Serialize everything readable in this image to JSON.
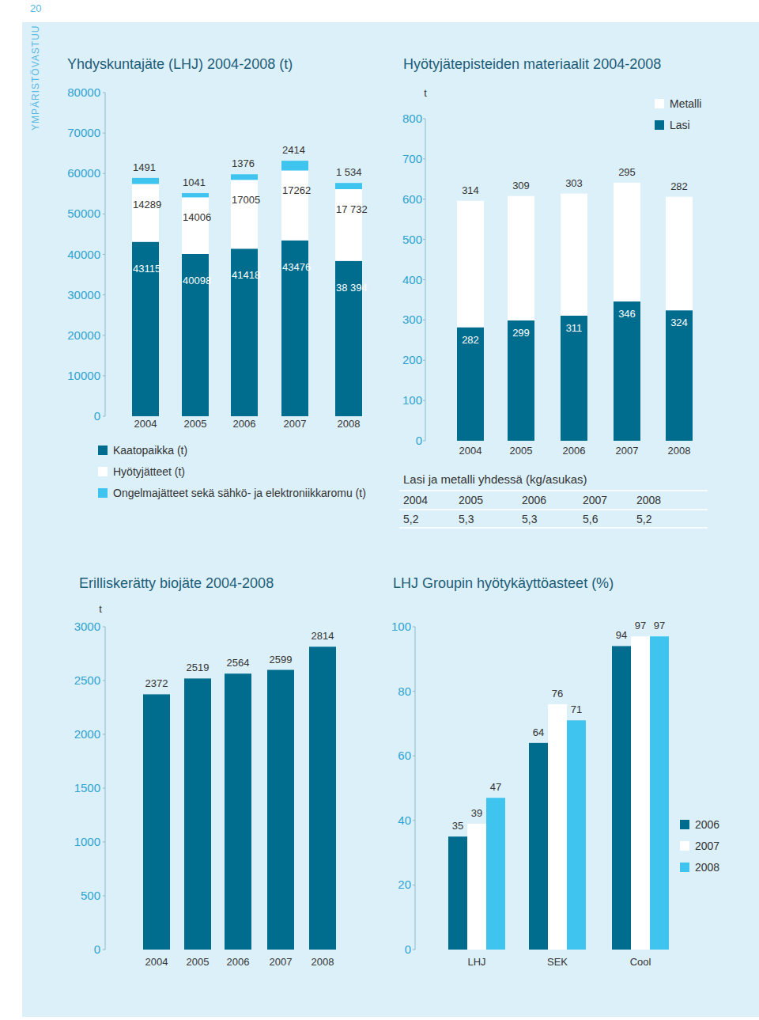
{
  "page": {
    "number": "20",
    "section": "YMPÄRISTÖVASTUU"
  },
  "table": {
    "title": "Lasi ja metalli yhdessä (kg/asukas)",
    "rows": [
      [
        "2004",
        "2005",
        "2006",
        "2007",
        "2008"
      ],
      [
        "5,2",
        "5,3",
        "5,3",
        "5,6",
        "5,2"
      ]
    ]
  },
  "chart_data": [
    {
      "type": "bar",
      "title": "Yhdyskuntajäte (LHJ) 2004-2008 (t)",
      "stacked": true,
      "data_labels": true,
      "legend": "bottom",
      "categories": [
        "2004",
        "2005",
        "2006",
        "2007",
        "2008"
      ],
      "series": [
        {
          "name": "Kaatopaikka (t)",
          "color": "#006d8e",
          "values": [
            43115,
            40098,
            41418,
            43476,
            38394
          ],
          "value_labels": [
            "43115",
            "40098",
            "41418",
            "43476",
            "38 394"
          ]
        },
        {
          "name": "Hyötyjätteet (t)",
          "color": "#ffffff",
          "values": [
            14289,
            14006,
            17005,
            17262,
            17732
          ],
          "value_labels": [
            "14289",
            "14006",
            "17005",
            "17262",
            "17 732"
          ]
        },
        {
          "name": "Ongelmajätteet sekä sähkö- ja elektroniikkaromu (t)",
          "color": "#3ec4ef",
          "values": [
            1491,
            1041,
            1376,
            2414,
            1534
          ],
          "value_labels": [
            "1491",
            "1041",
            "1376",
            "2414",
            "1 534"
          ]
        }
      ],
      "ylim": [
        0,
        80000
      ],
      "yticks": [
        0,
        10000,
        20000,
        30000,
        40000,
        50000,
        60000,
        70000,
        80000
      ]
    },
    {
      "type": "bar",
      "title": "Hyötyjätepisteiden materiaalit 2004-2008",
      "ylabel": "t",
      "stacked": true,
      "data_labels": true,
      "legend": "upper right",
      "categories": [
        "2004",
        "2005",
        "2006",
        "2007",
        "2008"
      ],
      "series": [
        {
          "name": "Lasi",
          "color": "#006d8e",
          "values": [
            282,
            299,
            311,
            346,
            324
          ]
        },
        {
          "name": "Metalli",
          "color": "#ffffff",
          "values": [
            314,
            309,
            303,
            295,
            282
          ]
        }
      ],
      "ylim": [
        0,
        800
      ],
      "yticks": [
        0,
        100,
        200,
        300,
        400,
        500,
        600,
        700,
        800
      ]
    },
    {
      "type": "bar",
      "title": "Erilliskerätty biojäte 2004-2008",
      "ylabel": "t",
      "data_labels": true,
      "color": "#006d8e",
      "categories": [
        "2004",
        "2005",
        "2006",
        "2007",
        "2008"
      ],
      "values": [
        2372,
        2519,
        2564,
        2599,
        2814
      ],
      "ylim": [
        0,
        3000
      ],
      "yticks": [
        0,
        500,
        1000,
        1500,
        2000,
        2500,
        3000
      ]
    },
    {
      "type": "bar",
      "title": "LHJ Groupin hyötykäyttöasteet (%)",
      "data_labels": true,
      "legend": "right",
      "categories": [
        "LHJ",
        "SEK",
        "Cool"
      ],
      "series": [
        {
          "name": "2006",
          "color": "#006d8e",
          "values": [
            35,
            64,
            94
          ]
        },
        {
          "name": "2007",
          "color": "#ffffff",
          "values": [
            39,
            76,
            97
          ]
        },
        {
          "name": "2008",
          "color": "#3ec4ef",
          "values": [
            47,
            71,
            97
          ]
        }
      ],
      "ylim": [
        0,
        100
      ],
      "yticks": [
        0,
        20,
        40,
        60,
        80,
        100
      ]
    }
  ]
}
